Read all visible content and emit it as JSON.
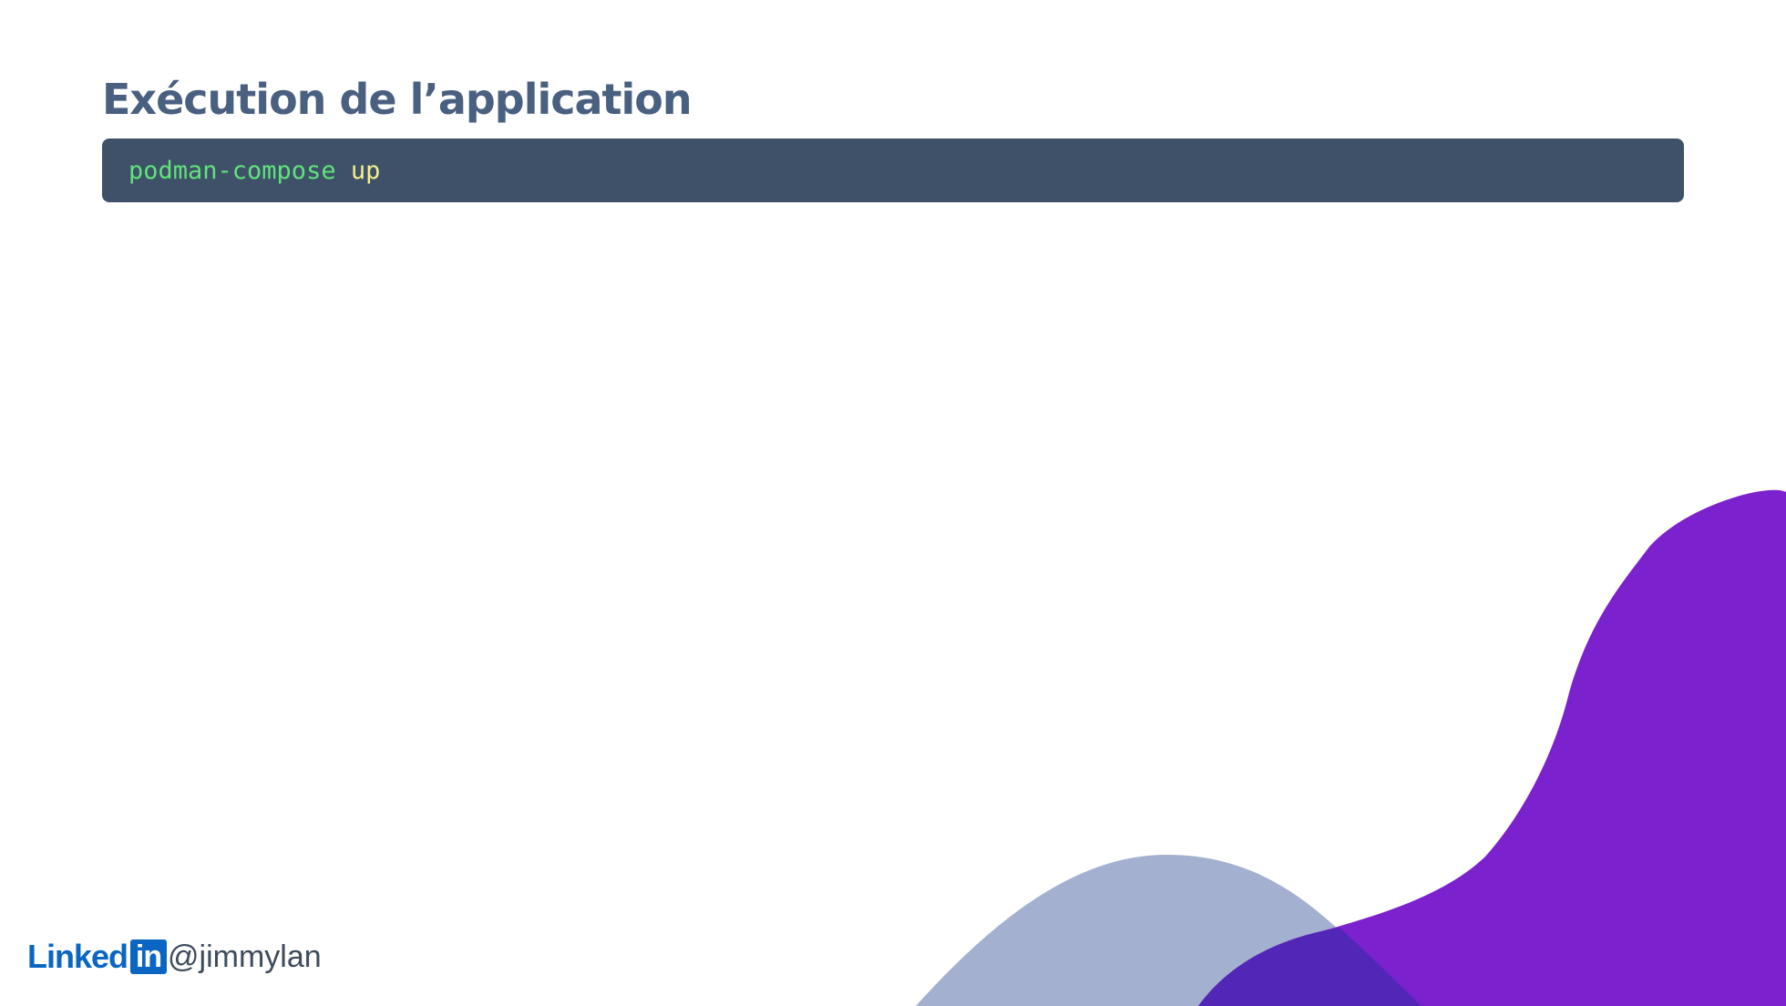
{
  "slide": {
    "title": "Exécution de l’application",
    "code": {
      "command": "podman-compose",
      "argument": "up"
    },
    "footer": {
      "brand_text": "Linked",
      "brand_box": "in",
      "handle": "@jimmylan"
    }
  },
  "colors": {
    "title": "#4a6080",
    "code_background": "#3f5169",
    "code_command": "#5fe37a",
    "code_argument": "#f4ef8c",
    "wave_light": "#a4b0d0",
    "wave_purple": "#7b22ce",
    "wave_overlap": "#5226b6",
    "linkedin_blue": "#0a66c2"
  },
  "icons": {
    "brand_logo": "linkedin-logo"
  }
}
